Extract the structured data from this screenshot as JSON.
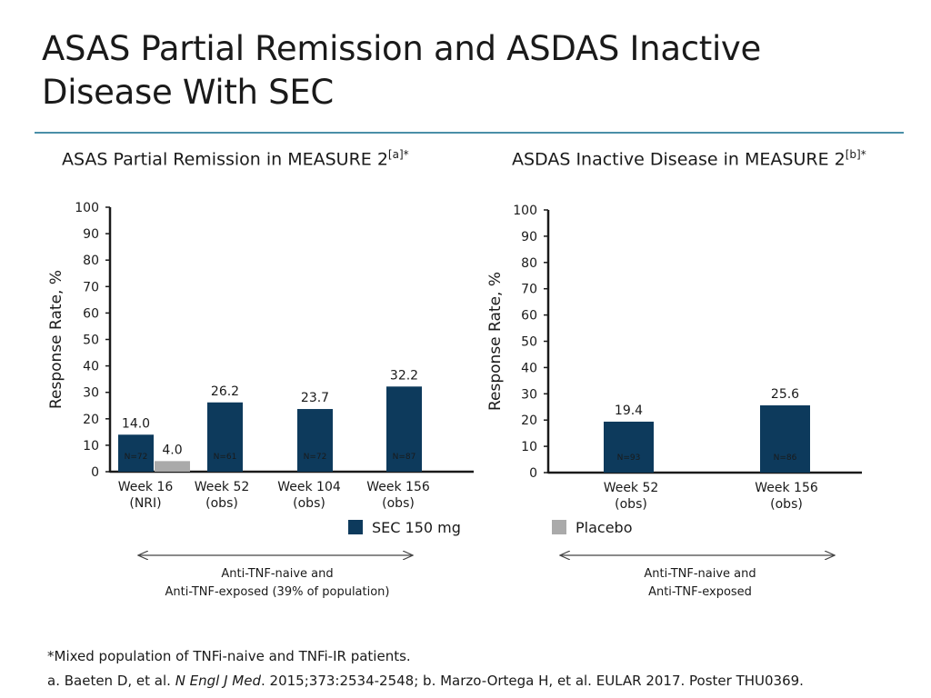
{
  "title": "ASAS Partial Remission and ASDAS Inactive Disease With SEC",
  "colors": {
    "sec": "#0d3a5c",
    "placebo": "#aaaaaa",
    "rule": "#4a8fa8"
  },
  "legend": {
    "sec": "SEC 150 mg",
    "placebo": "Placebo"
  },
  "chart_data": [
    {
      "type": "bar",
      "title": "ASAS Partial Remission in MEASURE 2",
      "title_superscript": "[a]*",
      "ylabel": "Response Rate, %",
      "ylim": [
        0,
        100
      ],
      "yticks": [
        0,
        10,
        20,
        30,
        40,
        50,
        60,
        70,
        80,
        90,
        100
      ],
      "categories": [
        {
          "line1": "Week 16",
          "line2": "(NRI)"
        },
        {
          "line1": "Week 52",
          "line2": "(obs)"
        },
        {
          "line1": "Week 104",
          "line2": "(obs)"
        },
        {
          "line1": "Week 156",
          "line2": "(obs)"
        }
      ],
      "series": [
        {
          "name": "SEC 150 mg",
          "values": [
            14.0,
            26.2,
            23.7,
            32.2
          ],
          "labels": [
            "14.0",
            "26.2",
            "23.7",
            "32.2"
          ],
          "n": [
            "N=72",
            "N=61",
            "N=72",
            "N=87"
          ]
        },
        {
          "name": "Placebo",
          "values": [
            4.0,
            null,
            null,
            null
          ],
          "labels": [
            "4.0",
            null,
            null,
            null
          ],
          "n": [
            null,
            null,
            null,
            null
          ]
        }
      ],
      "range_line1": "Anti-TNF-naive and",
      "range_line2": "Anti-TNF-exposed (39% of population)"
    },
    {
      "type": "bar",
      "title": "ASDAS Inactive Disease in MEASURE 2",
      "title_superscript": "[b]*",
      "ylabel": "Response Rate, %",
      "ylim": [
        0,
        100
      ],
      "yticks": [
        0,
        10,
        20,
        30,
        40,
        50,
        60,
        70,
        80,
        90,
        100
      ],
      "categories": [
        {
          "line1": "Week 52",
          "line2": "(obs)"
        },
        {
          "line1": "Week 156",
          "line2": "(obs)"
        }
      ],
      "series": [
        {
          "name": "SEC 150 mg",
          "values": [
            19.4,
            25.6
          ],
          "labels": [
            "19.4",
            "25.6"
          ],
          "n": [
            "N=93",
            "N=86"
          ]
        }
      ],
      "range_line1": "Anti-TNF-naive and",
      "range_line2": "Anti-TNF-exposed"
    }
  ],
  "footnotes": {
    "line1": "*Mixed population of TNFi-naive and TNFi-IR patients.",
    "line2_a": "a. Baeten D, et al. ",
    "line2_journal": "N Engl J Med",
    "line2_b": ". 2015;373:2534-2548; b. Marzo-Ortega H, et al. EULAR 2017. Poster THU0369."
  }
}
